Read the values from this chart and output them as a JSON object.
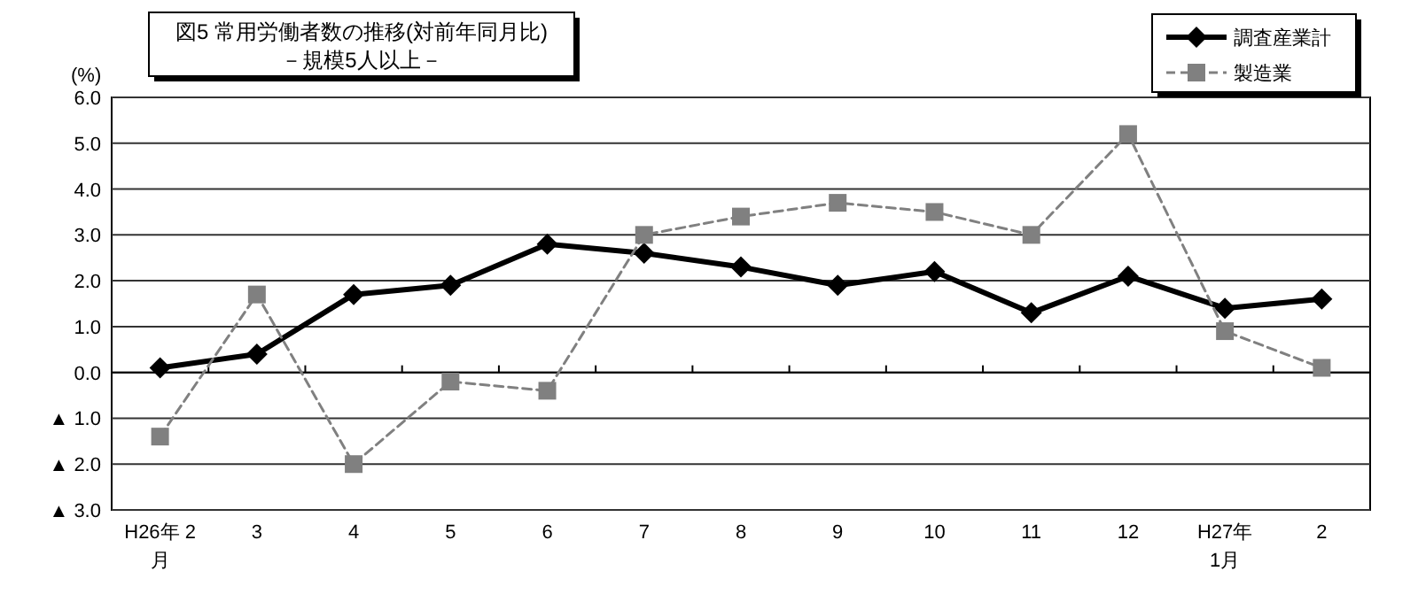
{
  "chart_data": {
    "type": "line",
    "title": "図5 常用労働者数の推移(対前年同月比)",
    "subtitle": "－規模5人以上－",
    "ylabel": "(%)",
    "categories": [
      "H26年 2\n月",
      "3",
      "4",
      "5",
      "6",
      "7",
      "8",
      "9",
      "10",
      "11",
      "12",
      "H27年\n1月",
      "2"
    ],
    "series": [
      {
        "name": "調査産業計",
        "color": "#000000",
        "marker": "diamond",
        "line_style": "solid",
        "values": [
          0.1,
          0.4,
          1.7,
          1.9,
          2.8,
          2.6,
          2.3,
          1.9,
          2.2,
          1.3,
          2.1,
          1.4,
          1.6
        ]
      },
      {
        "name": "製造業",
        "color": "#808080",
        "marker": "square",
        "line_style": "dashed",
        "values": [
          -1.4,
          1.7,
          -2.0,
          -0.2,
          -0.4,
          3.0,
          3.4,
          3.7,
          3.5,
          3.0,
          5.2,
          0.9,
          0.1
        ]
      }
    ],
    "ylim": [
      -3,
      6
    ],
    "yticks": [
      {
        "value": -3,
        "label": "▲ 3.0"
      },
      {
        "value": -2,
        "label": "▲ 2.0"
      },
      {
        "value": -1,
        "label": "▲ 1.0"
      },
      {
        "value": 0,
        "label": "0.0"
      },
      {
        "value": 1,
        "label": "1.0"
      },
      {
        "value": 2,
        "label": "2.0"
      },
      {
        "value": 3,
        "label": "3.0"
      },
      {
        "value": 4,
        "label": "4.0"
      },
      {
        "value": 5,
        "label": "5.0"
      },
      {
        "value": 6,
        "label": "6.0"
      }
    ],
    "grid": "y",
    "legend": "top right"
  }
}
